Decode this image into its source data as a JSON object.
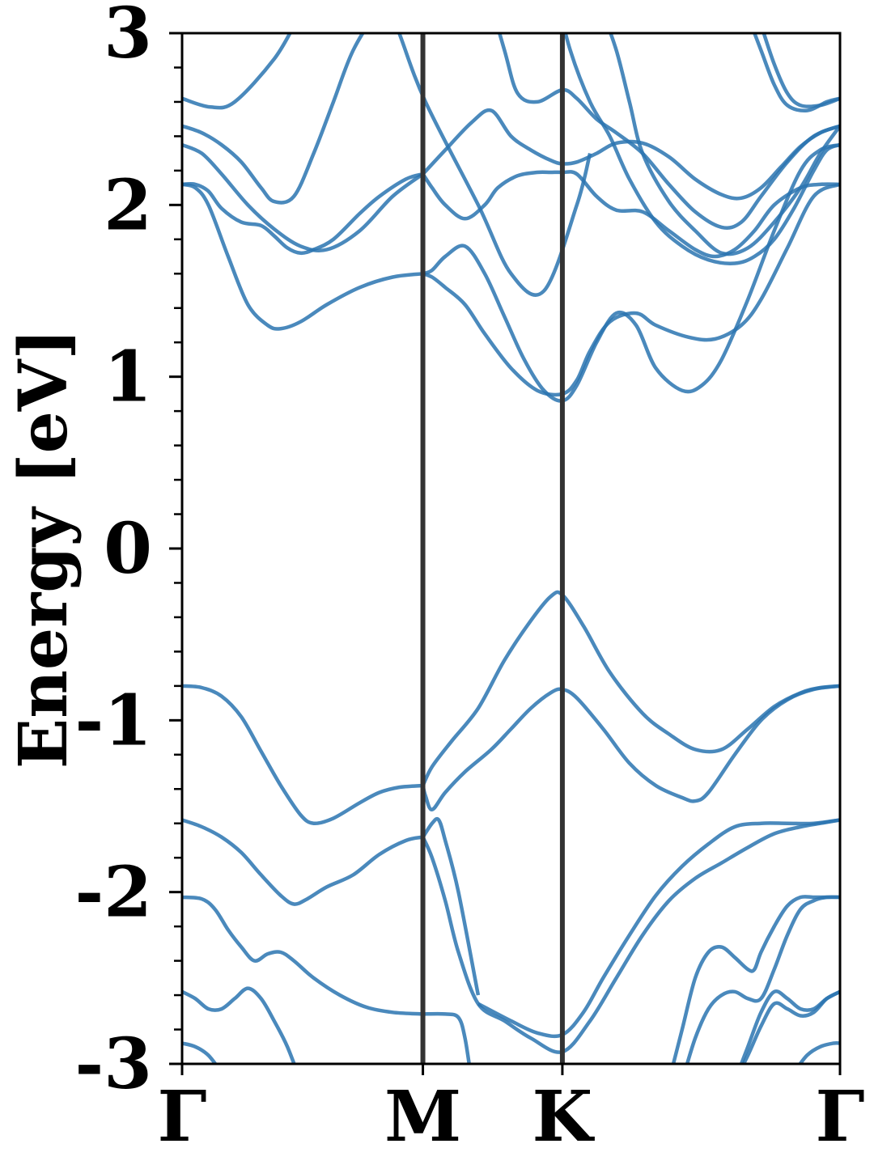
{
  "chart_data": {
    "type": "line",
    "title": "",
    "xlabel": "",
    "ylabel": "Energy [eV]",
    "ylim": [
      -3,
      3
    ],
    "xlim": [
      0,
      1
    ],
    "grid": false,
    "legend": "none",
    "line_color": "#2a74b0",
    "vline_color": "#333333",
    "yticks": [
      {
        "value": 3,
        "label": "3"
      },
      {
        "value": 2,
        "label": "2"
      },
      {
        "value": 1,
        "label": "1"
      },
      {
        "value": 0,
        "label": "0"
      },
      {
        "value": -1,
        "label": "-1"
      },
      {
        "value": -2,
        "label": "-2"
      },
      {
        "value": -3,
        "label": "-3"
      }
    ],
    "kpoints": [
      {
        "label": "Γ",
        "x": 0.0
      },
      {
        "label": "M",
        "x": 0.366
      },
      {
        "label": "K",
        "x": 0.578
      },
      {
        "label": "Γ",
        "x": 1.0
      }
    ],
    "series": [
      {
        "x": [
          0.0,
          0.043,
          0.08,
          0.14,
          0.18,
          0.24,
          0.3,
          0.33,
          0.37,
          0.45,
          0.5,
          0.55,
          0.6,
          0.62
        ],
        "values": [
          2.62,
          2.57,
          2.6,
          2.85,
          3.1,
          3.4,
          3.3,
          3.0,
          2.6,
          2.0,
          1.6,
          1.5,
          2.0,
          2.3
        ]
      },
      {
        "x": [
          0.0,
          0.03,
          0.06,
          0.09,
          0.12,
          0.14,
          0.17,
          0.2,
          0.23,
          0.26,
          0.3,
          0.33,
          0.366
        ],
        "values": [
          2.46,
          2.42,
          2.35,
          2.25,
          2.1,
          2.02,
          2.05,
          2.3,
          2.6,
          2.9,
          3.15,
          3.3,
          3.4
        ]
      },
      {
        "x": [
          0.0,
          0.03,
          0.06,
          0.1,
          0.14,
          0.18,
          0.22,
          0.27,
          0.32,
          0.366
        ],
        "values": [
          2.35,
          2.3,
          2.18,
          2.0,
          1.86,
          1.76,
          1.74,
          1.85,
          2.05,
          2.18
        ]
      },
      {
        "x": [
          0.0,
          0.02,
          0.04,
          0.06,
          0.09,
          0.12,
          0.14,
          0.16,
          0.18,
          0.2,
          0.23,
          0.27,
          0.3,
          0.34,
          0.366
        ],
        "values": [
          2.12,
          2.12,
          2.08,
          1.98,
          1.9,
          1.88,
          1.82,
          1.75,
          1.72,
          1.74,
          1.8,
          1.95,
          2.05,
          2.15,
          2.18
        ]
      },
      {
        "x": [
          0.0,
          0.02,
          0.04,
          0.07,
          0.1,
          0.13,
          0.15,
          0.18,
          0.22,
          0.27,
          0.32,
          0.366
        ],
        "values": [
          2.12,
          2.1,
          2.0,
          1.7,
          1.42,
          1.3,
          1.28,
          1.32,
          1.42,
          1.52,
          1.58,
          1.6
        ]
      },
      {
        "x": [
          0.366,
          0.38,
          0.4,
          0.43,
          0.46,
          0.48,
          0.51,
          0.54,
          0.56,
          0.578,
          0.6,
          0.63,
          0.66,
          0.7,
          0.74,
          0.78,
          0.81,
          0.84,
          0.87,
          0.9,
          0.94,
          0.97,
          1.0
        ],
        "values": [
          2.18,
          2.1,
          2.0,
          1.92,
          2.0,
          2.1,
          2.17,
          2.19,
          2.19,
          2.19,
          2.18,
          2.05,
          1.97,
          1.96,
          1.85,
          1.74,
          1.7,
          1.74,
          1.85,
          2.0,
          2.1,
          2.12,
          2.12
        ]
      },
      {
        "x": [
          0.366,
          0.4,
          0.44,
          0.47,
          0.5,
          0.53,
          0.56,
          0.578,
          0.6,
          0.63,
          0.66,
          0.7,
          0.74,
          0.78,
          0.82,
          0.85,
          0.88,
          0.91,
          0.94,
          0.97,
          1.0
        ],
        "values": [
          2.18,
          2.32,
          2.48,
          2.55,
          2.4,
          2.32,
          2.26,
          2.24,
          2.25,
          2.3,
          2.36,
          2.36,
          2.28,
          2.15,
          2.06,
          2.04,
          2.1,
          2.22,
          2.34,
          2.42,
          2.46
        ]
      },
      {
        "x": [
          0.46,
          0.49,
          0.51,
          0.54,
          0.578,
          0.6,
          0.63,
          0.66,
          0.7,
          0.74,
          0.78,
          0.82,
          0.85,
          0.88,
          0.92,
          0.96,
          1.0
        ],
        "values": [
          3.3,
          2.9,
          2.65,
          2.6,
          2.67,
          2.62,
          2.5,
          2.42,
          2.3,
          2.12,
          1.96,
          1.87,
          1.9,
          2.05,
          2.25,
          2.4,
          2.46
        ]
      },
      {
        "x": [
          0.366,
          0.38,
          0.4,
          0.43,
          0.46,
          0.5,
          0.54,
          0.578,
          0.6,
          0.62,
          0.65,
          0.69,
          0.72,
          0.77,
          0.81,
          0.85,
          0.88,
          0.92,
          0.96,
          1.0
        ],
        "values": [
          1.6,
          1.58,
          1.52,
          1.42,
          1.25,
          1.05,
          0.92,
          0.9,
          0.98,
          1.15,
          1.32,
          1.37,
          1.3,
          1.23,
          1.22,
          1.3,
          1.45,
          1.75,
          2.05,
          2.12
        ]
      },
      {
        "x": [
          0.366,
          0.38,
          0.4,
          0.43,
          0.46,
          0.49,
          0.52,
          0.55,
          0.578,
          0.6,
          0.63,
          0.66,
          0.69,
          0.72,
          0.76,
          0.79,
          0.82,
          0.86,
          0.9,
          0.94,
          0.97,
          1.0
        ],
        "values": [
          1.6,
          1.62,
          1.7,
          1.76,
          1.6,
          1.35,
          1.1,
          0.92,
          0.86,
          0.95,
          1.2,
          1.37,
          1.3,
          1.05,
          0.92,
          0.95,
          1.1,
          1.45,
          1.85,
          2.2,
          2.32,
          2.35
        ]
      },
      {
        "x": [
          0.57,
          0.59,
          0.62,
          0.65,
          0.68,
          0.72,
          0.76,
          0.8,
          0.84,
          0.87,
          0.9,
          0.93,
          0.96,
          0.98,
          1.0
        ],
        "values": [
          3.2,
          2.9,
          2.6,
          2.4,
          2.15,
          1.9,
          1.76,
          1.68,
          1.66,
          1.7,
          1.8,
          1.98,
          2.2,
          2.32,
          2.35
        ]
      },
      {
        "x": [
          0.6,
          0.62,
          0.64,
          0.66,
          0.68,
          0.7,
          0.74,
          0.78,
          0.82,
          0.86,
          0.9,
          0.94,
          0.97,
          1.0
        ],
        "values": [
          3.3,
          3.2,
          3.1,
          2.9,
          2.6,
          2.3,
          2.02,
          1.85,
          1.72,
          1.75,
          1.9,
          2.1,
          2.3,
          2.46
        ]
      },
      {
        "x": [
          0.84,
          0.86,
          0.88,
          0.9,
          0.92,
          0.95,
          0.98,
          1.0
        ],
        "values": [
          3.3,
          3.1,
          2.9,
          2.7,
          2.58,
          2.55,
          2.6,
          2.62
        ]
      },
      {
        "x": [
          0.86,
          0.88,
          0.9,
          0.92,
          0.94,
          0.97,
          1.0
        ],
        "values": [
          3.3,
          3.05,
          2.82,
          2.65,
          2.58,
          2.58,
          2.62
        ]
      },
      {
        "x": [
          0.0,
          0.03,
          0.06,
          0.09,
          0.12,
          0.15,
          0.18,
          0.2,
          0.23,
          0.27,
          0.3,
          0.33,
          0.366
        ],
        "values": [
          -0.8,
          -0.81,
          -0.86,
          -0.98,
          -1.18,
          -1.38,
          -1.55,
          -1.6,
          -1.57,
          -1.48,
          -1.42,
          -1.39,
          -1.38
        ]
      },
      {
        "x": [
          0.366,
          0.38,
          0.41,
          0.45,
          0.49,
          0.53,
          0.56,
          0.578,
          0.61,
          0.65,
          0.7,
          0.74,
          0.78,
          0.82,
          0.86,
          0.9,
          0.94,
          0.97,
          1.0
        ],
        "values": [
          -1.38,
          -1.27,
          -1.12,
          -0.93,
          -0.65,
          -0.42,
          -0.28,
          -0.27,
          -0.45,
          -0.72,
          -0.96,
          -1.08,
          -1.17,
          -1.17,
          -1.05,
          -0.92,
          -0.84,
          -0.81,
          -0.8
        ]
      },
      {
        "x": [
          0.366,
          0.37,
          0.38,
          0.4,
          0.43,
          0.47,
          0.5,
          0.53,
          0.56,
          0.578,
          0.6,
          0.64,
          0.68,
          0.72,
          0.76,
          0.78,
          0.8,
          0.84,
          0.88,
          0.92,
          0.96,
          1.0
        ],
        "values": [
          -1.38,
          -1.44,
          -1.52,
          -1.42,
          -1.3,
          -1.17,
          -1.05,
          -0.93,
          -0.84,
          -0.82,
          -0.87,
          -1.05,
          -1.25,
          -1.38,
          -1.45,
          -1.47,
          -1.42,
          -1.2,
          -1.0,
          -0.88,
          -0.82,
          -0.8
        ]
      },
      {
        "x": [
          0.0,
          0.03,
          0.06,
          0.09,
          0.12,
          0.15,
          0.17,
          0.19,
          0.22,
          0.26,
          0.3,
          0.34,
          0.366
        ],
        "values": [
          -1.58,
          -1.62,
          -1.68,
          -1.77,
          -1.9,
          -2.02,
          -2.07,
          -2.04,
          -1.97,
          -1.9,
          -1.78,
          -1.7,
          -1.68
        ]
      },
      {
        "x": [
          0.366,
          0.38,
          0.39,
          0.4,
          0.42,
          0.45
        ],
        "values": [
          -1.68,
          -1.6,
          -1.58,
          -1.7,
          -2.0,
          -2.6
        ]
      },
      {
        "x": [
          0.366,
          0.38,
          0.4,
          0.42,
          0.45,
          0.49,
          0.53,
          0.578,
          0.62,
          0.66,
          0.7,
          0.74,
          0.78,
          0.82,
          0.86,
          0.9,
          0.94,
          0.97,
          1.0
        ],
        "values": [
          -1.68,
          -1.8,
          -2.05,
          -2.35,
          -2.65,
          -2.75,
          -2.85,
          -2.93,
          -2.75,
          -2.5,
          -2.25,
          -2.05,
          -1.92,
          -1.83,
          -1.74,
          -1.66,
          -1.62,
          -1.6,
          -1.58
        ]
      },
      {
        "x": [
          0.45,
          0.5,
          0.54,
          0.578,
          0.61,
          0.64,
          0.68,
          0.72,
          0.76,
          0.8,
          0.84,
          0.88,
          0.92,
          0.96,
          1.0
        ],
        "values": [
          -2.65,
          -2.75,
          -2.82,
          -2.83,
          -2.7,
          -2.5,
          -2.25,
          -2.02,
          -1.85,
          -1.72,
          -1.62,
          -1.6,
          -1.6,
          -1.6,
          -1.58
        ]
      },
      {
        "x": [
          0.0,
          0.03,
          0.05,
          0.07,
          0.09,
          0.11,
          0.13,
          0.15,
          0.17,
          0.2,
          0.24,
          0.28,
          0.32,
          0.366
        ],
        "values": [
          -2.03,
          -2.04,
          -2.1,
          -2.22,
          -2.32,
          -2.4,
          -2.36,
          -2.35,
          -2.4,
          -2.5,
          -2.6,
          -2.67,
          -2.7,
          -2.71
        ]
      },
      {
        "x": [
          0.366,
          0.4,
          0.42,
          0.43,
          0.44
        ],
        "values": [
          -2.71,
          -2.71,
          -2.73,
          -2.85,
          -3.1
        ]
      },
      {
        "x": [
          0.0,
          0.02,
          0.04,
          0.06,
          0.08,
          0.1,
          0.12,
          0.14,
          0.16,
          0.18
        ],
        "values": [
          -2.58,
          -2.62,
          -2.68,
          -2.68,
          -2.62,
          -2.56,
          -2.62,
          -2.75,
          -2.9,
          -3.1
        ]
      },
      {
        "x": [
          0.0,
          0.02,
          0.04,
          0.06
        ],
        "values": [
          -2.88,
          -2.9,
          -2.95,
          -3.05
        ]
      },
      {
        "x": [
          0.74,
          0.76,
          0.78,
          0.8,
          0.82,
          0.84,
          0.86,
          0.87,
          0.88,
          0.9,
          0.92,
          0.94,
          0.96,
          0.98,
          1.0
        ],
        "values": [
          -3.1,
          -2.8,
          -2.5,
          -2.35,
          -2.32,
          -2.38,
          -2.45,
          -2.45,
          -2.35,
          -2.2,
          -2.08,
          -2.03,
          -2.03,
          -2.03,
          -2.03
        ]
      },
      {
        "x": [
          0.76,
          0.78,
          0.8,
          0.82,
          0.84,
          0.86,
          0.88,
          0.9,
          0.92,
          0.94,
          0.96,
          0.98,
          1.0
        ],
        "values": [
          -3.1,
          -2.85,
          -2.68,
          -2.6,
          -2.58,
          -2.62,
          -2.62,
          -2.45,
          -2.25,
          -2.1,
          -2.05,
          -2.03,
          -2.03
        ]
      },
      {
        "x": [
          0.84,
          0.86,
          0.88,
          0.9,
          0.92,
          0.94,
          0.96,
          0.98,
          1.0
        ],
        "values": [
          -3.1,
          -2.9,
          -2.7,
          -2.58,
          -2.62,
          -2.68,
          -2.68,
          -2.62,
          -2.58
        ]
      },
      {
        "x": [
          0.84,
          0.86,
          0.88,
          0.9,
          0.92,
          0.94,
          0.96,
          0.98,
          1.0
        ],
        "values": [
          -3.1,
          -2.95,
          -2.78,
          -2.65,
          -2.68,
          -2.72,
          -2.7,
          -2.62,
          -2.58
        ]
      },
      {
        "x": [
          0.93,
          0.95,
          0.97,
          0.99,
          1.0
        ],
        "values": [
          -3.05,
          -2.95,
          -2.9,
          -2.88,
          -2.88
        ]
      }
    ]
  }
}
